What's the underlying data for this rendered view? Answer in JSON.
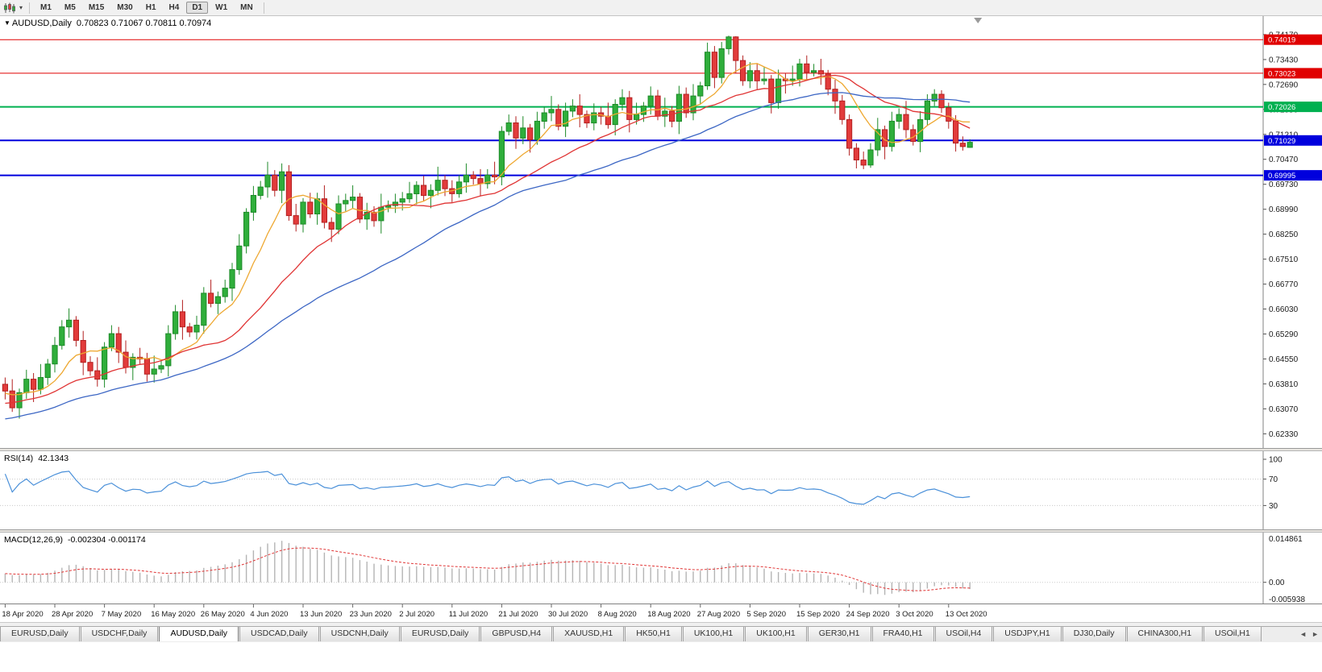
{
  "colors": {
    "up": "#2fae3b",
    "up_stroke": "#1d8a28",
    "down": "#e23b3b",
    "down_stroke": "#b32020",
    "ma_fast": "#eea831",
    "ma_mid": "#e03434",
    "ma_slow": "#3c66c4",
    "rsi_line": "#4a90d9",
    "macd_hist": "#b4b4b4",
    "macd_signal": "#e03434",
    "hline_red": "#e00000",
    "hline_green": "#00b050",
    "hline_blue": "#0000dd"
  },
  "toolbar": {
    "timeframes": [
      {
        "label": "M1",
        "active": false
      },
      {
        "label": "M5",
        "active": false
      },
      {
        "label": "M15",
        "active": false
      },
      {
        "label": "M30",
        "active": false
      },
      {
        "label": "H1",
        "active": false
      },
      {
        "label": "H4",
        "active": false
      },
      {
        "label": "D1",
        "active": true
      },
      {
        "label": "W1",
        "active": false
      },
      {
        "label": "MN",
        "active": false
      }
    ]
  },
  "chart": {
    "header": {
      "symbol": "AUDUSD,Daily",
      "ohlc": "0.70823 0.71067 0.70811 0.70974"
    },
    "price_axis": {
      "min": 0.621,
      "max": 0.7455
    },
    "price_axis_labels": [
      "0.74170",
      "0.73430",
      "0.72690",
      "0.71950",
      "0.71210",
      "0.70470",
      "0.69730",
      "0.68990",
      "0.68250",
      "0.67510",
      "0.66770",
      "0.66030",
      "0.65290",
      "0.64550",
      "0.63810",
      "0.63070",
      "0.62330"
    ],
    "hlines": [
      {
        "price": 0.74019,
        "label": "0.74019",
        "color_key": "hline_red",
        "width": 1
      },
      {
        "price": 0.73023,
        "label": "0.73023",
        "color_key": "hline_red",
        "width": 1
      },
      {
        "price": 0.72026,
        "label": "0.72026",
        "color_key": "hline_green",
        "width": 2
      },
      {
        "price": 0.71029,
        "label": "0.71029",
        "color_key": "hline_blue",
        "width": 2
      },
      {
        "price": 0.69995,
        "label": "0.69995",
        "color_key": "hline_blue",
        "width": 2
      }
    ]
  },
  "chart_data": {
    "type": "candlestick",
    "symbol": "AUDUSD",
    "period": "Daily",
    "x_labels": [
      "18 Apr 2020",
      "28 Apr 2020",
      "7 May 2020",
      "16 May 2020",
      "26 May 2020",
      "4 Jun 2020",
      "13 Jun 2020",
      "23 Jun 2020",
      "2 Jul 2020",
      "11 Jul 2020",
      "21 Jul 2020",
      "30 Jul 2020",
      "8 Aug 2020",
      "18 Aug 2020",
      "27 Aug 2020",
      "5 Sep 2020",
      "15 Sep 2020",
      "24 Sep 2020",
      "3 Oct 2020",
      "13 Oct 2020"
    ],
    "label_every_bars": 7,
    "pre_closes": [
      0.618,
      0.6185,
      0.6178,
      0.6192,
      0.62,
      0.6195,
      0.6208,
      0.6215,
      0.621,
      0.6222,
      0.623,
      0.6225,
      0.6238,
      0.6245,
      0.624,
      0.6252,
      0.626,
      0.6255,
      0.6268,
      0.6275,
      0.627,
      0.6282,
      0.629,
      0.6285,
      0.6298,
      0.6305,
      0.63,
      0.6312,
      0.632,
      0.6315,
      0.6328,
      0.6335,
      0.633,
      0.6342,
      0.635,
      0.6345,
      0.6352,
      0.6358,
      0.6355,
      0.6362
    ],
    "candles": [
      [
        0.638,
        0.64,
        0.6335,
        0.636
      ],
      [
        0.636,
        0.6395,
        0.6298,
        0.631
      ],
      [
        0.631,
        0.6367,
        0.6278,
        0.6355
      ],
      [
        0.6355,
        0.6423,
        0.6337,
        0.6395
      ],
      [
        0.6395,
        0.6413,
        0.6327,
        0.6365
      ],
      [
        0.6365,
        0.644,
        0.635,
        0.64
      ],
      [
        0.64,
        0.6455,
        0.6378,
        0.644
      ],
      [
        0.644,
        0.652,
        0.6415,
        0.6495
      ],
      [
        0.6495,
        0.657,
        0.6483,
        0.655
      ],
      [
        0.655,
        0.6605,
        0.6518,
        0.657
      ],
      [
        0.657,
        0.6582,
        0.6492,
        0.651
      ],
      [
        0.651,
        0.6538,
        0.6407,
        0.6445
      ],
      [
        0.6445,
        0.6463,
        0.6405,
        0.642
      ],
      [
        0.642,
        0.646,
        0.6373,
        0.6395
      ],
      [
        0.6395,
        0.6505,
        0.637,
        0.649
      ],
      [
        0.649,
        0.6555,
        0.6478,
        0.653
      ],
      [
        0.653,
        0.655,
        0.6443,
        0.6475
      ],
      [
        0.6475,
        0.651,
        0.6412,
        0.643
      ],
      [
        0.643,
        0.6472,
        0.6392,
        0.646
      ],
      [
        0.646,
        0.6488,
        0.644,
        0.6455
      ],
      [
        0.6455,
        0.6473,
        0.6388,
        0.641
      ],
      [
        0.641,
        0.6465,
        0.6385,
        0.6425
      ],
      [
        0.6425,
        0.645,
        0.6413,
        0.6435
      ],
      [
        0.6435,
        0.6555,
        0.6403,
        0.653
      ],
      [
        0.653,
        0.6615,
        0.6512,
        0.6595
      ],
      [
        0.6595,
        0.663,
        0.6512,
        0.655
      ],
      [
        0.655,
        0.6562,
        0.652,
        0.6535
      ],
      [
        0.6535,
        0.6583,
        0.6513,
        0.6555
      ],
      [
        0.6555,
        0.6668,
        0.653,
        0.665
      ],
      [
        0.665,
        0.669,
        0.6608,
        0.662
      ],
      [
        0.662,
        0.6655,
        0.6588,
        0.664
      ],
      [
        0.664,
        0.669,
        0.6622,
        0.6665
      ],
      [
        0.6665,
        0.674,
        0.6627,
        0.672
      ],
      [
        0.672,
        0.6825,
        0.6705,
        0.679
      ],
      [
        0.679,
        0.6902,
        0.6768,
        0.689
      ],
      [
        0.689,
        0.6968,
        0.6865,
        0.694
      ],
      [
        0.694,
        0.6983,
        0.6928,
        0.6965
      ],
      [
        0.6965,
        0.704,
        0.6933,
        0.7
      ],
      [
        0.7,
        0.7015,
        0.6937,
        0.6955
      ],
      [
        0.6955,
        0.7035,
        0.6917,
        0.701
      ],
      [
        0.701,
        0.703,
        0.6865,
        0.688
      ],
      [
        0.688,
        0.6915,
        0.6833,
        0.6855
      ],
      [
        0.6855,
        0.6932,
        0.683,
        0.692
      ],
      [
        0.692,
        0.6948,
        0.6873,
        0.6885
      ],
      [
        0.6885,
        0.6948,
        0.6853,
        0.693
      ],
      [
        0.693,
        0.697,
        0.6842,
        0.686
      ],
      [
        0.686,
        0.6875,
        0.6802,
        0.684
      ],
      [
        0.684,
        0.694,
        0.6825,
        0.6915
      ],
      [
        0.6915,
        0.6945,
        0.6893,
        0.6925
      ],
      [
        0.6925,
        0.697,
        0.69,
        0.6935
      ],
      [
        0.6935,
        0.6947,
        0.6858,
        0.687
      ],
      [
        0.687,
        0.6918,
        0.6838,
        0.689
      ],
      [
        0.689,
        0.6908,
        0.6847,
        0.6865
      ],
      [
        0.6865,
        0.6945,
        0.6827,
        0.6905
      ],
      [
        0.6905,
        0.6925,
        0.689,
        0.691
      ],
      [
        0.691,
        0.6945,
        0.6888,
        0.692
      ],
      [
        0.692,
        0.695,
        0.6895,
        0.693
      ],
      [
        0.693,
        0.698,
        0.6918,
        0.6945
      ],
      [
        0.6945,
        0.6982,
        0.6913,
        0.697
      ],
      [
        0.697,
        0.6998,
        0.6922,
        0.694
      ],
      [
        0.694,
        0.6973,
        0.6902,
        0.6955
      ],
      [
        0.6955,
        0.7025,
        0.694,
        0.6985
      ],
      [
        0.6985,
        0.7,
        0.6938,
        0.696
      ],
      [
        0.696,
        0.6985,
        0.692,
        0.6945
      ],
      [
        0.6945,
        0.7,
        0.6933,
        0.698
      ],
      [
        0.698,
        0.7035,
        0.6948,
        0.7
      ],
      [
        0.7,
        0.7012,
        0.6972,
        0.699
      ],
      [
        0.699,
        0.7018,
        0.6937,
        0.6975
      ],
      [
        0.6975,
        0.7018,
        0.696,
        0.7
      ],
      [
        0.7,
        0.704,
        0.6973,
        0.6995
      ],
      [
        0.6995,
        0.7145,
        0.697,
        0.713
      ],
      [
        0.713,
        0.718,
        0.7118,
        0.7155
      ],
      [
        0.7155,
        0.7175,
        0.7078,
        0.711
      ],
      [
        0.711,
        0.7175,
        0.7092,
        0.714
      ],
      [
        0.714,
        0.7152,
        0.7067,
        0.7105
      ],
      [
        0.7105,
        0.7188,
        0.709,
        0.716
      ],
      [
        0.716,
        0.7203,
        0.7138,
        0.7185
      ],
      [
        0.7185,
        0.7235,
        0.716,
        0.7195
      ],
      [
        0.7195,
        0.721,
        0.7133,
        0.7145
      ],
      [
        0.7145,
        0.7215,
        0.7113,
        0.719
      ],
      [
        0.719,
        0.7225,
        0.7172,
        0.7205
      ],
      [
        0.7205,
        0.724,
        0.7142,
        0.718
      ],
      [
        0.718,
        0.7192,
        0.714,
        0.7155
      ],
      [
        0.7155,
        0.7213,
        0.7133,
        0.7185
      ],
      [
        0.7185,
        0.7203,
        0.715,
        0.7175
      ],
      [
        0.7175,
        0.7215,
        0.7138,
        0.715
      ],
      [
        0.715,
        0.7225,
        0.7118,
        0.721
      ],
      [
        0.721,
        0.7255,
        0.7192,
        0.723
      ],
      [
        0.723,
        0.725,
        0.7127,
        0.7165
      ],
      [
        0.7165,
        0.7215,
        0.715,
        0.718
      ],
      [
        0.718,
        0.7217,
        0.7158,
        0.7205
      ],
      [
        0.7205,
        0.7263,
        0.718,
        0.7235
      ],
      [
        0.7235,
        0.7253,
        0.7163,
        0.7175
      ],
      [
        0.7175,
        0.723,
        0.7143,
        0.719
      ],
      [
        0.719,
        0.7205,
        0.7142,
        0.716
      ],
      [
        0.716,
        0.7265,
        0.7122,
        0.724
      ],
      [
        0.724,
        0.726,
        0.717,
        0.7185
      ],
      [
        0.7185,
        0.727,
        0.7163,
        0.7235
      ],
      [
        0.7235,
        0.7277,
        0.721,
        0.7265
      ],
      [
        0.7265,
        0.7393,
        0.7253,
        0.7365
      ],
      [
        0.7365,
        0.7383,
        0.7258,
        0.729
      ],
      [
        0.729,
        0.7395,
        0.7272,
        0.7375
      ],
      [
        0.7375,
        0.7414,
        0.7358,
        0.741
      ],
      [
        0.741,
        0.7412,
        0.7302,
        0.734
      ],
      [
        0.734,
        0.7355,
        0.7265,
        0.728
      ],
      [
        0.728,
        0.7335,
        0.7258,
        0.731
      ],
      [
        0.731,
        0.733,
        0.7255,
        0.728
      ],
      [
        0.728,
        0.732,
        0.7268,
        0.7285
      ],
      [
        0.7285,
        0.7297,
        0.7183,
        0.7215
      ],
      [
        0.7215,
        0.7313,
        0.7197,
        0.7285
      ],
      [
        0.7285,
        0.7303,
        0.7242,
        0.728
      ],
      [
        0.728,
        0.7325,
        0.7265,
        0.7285
      ],
      [
        0.7285,
        0.7345,
        0.7263,
        0.733
      ],
      [
        0.733,
        0.7355,
        0.728,
        0.7305
      ],
      [
        0.7305,
        0.733,
        0.7293,
        0.731
      ],
      [
        0.731,
        0.7345,
        0.7268,
        0.73
      ],
      [
        0.73,
        0.7312,
        0.7237,
        0.7255
      ],
      [
        0.7255,
        0.7283,
        0.7182,
        0.722
      ],
      [
        0.722,
        0.7238,
        0.715,
        0.7165
      ],
      [
        0.7165,
        0.718,
        0.7058,
        0.708
      ],
      [
        0.708,
        0.7095,
        0.702,
        0.7045
      ],
      [
        0.7045,
        0.707,
        0.7018,
        0.703
      ],
      [
        0.703,
        0.7095,
        0.7022,
        0.7075
      ],
      [
        0.7075,
        0.717,
        0.7057,
        0.7135
      ],
      [
        0.7135,
        0.7147,
        0.7047,
        0.7085
      ],
      [
        0.7085,
        0.7188,
        0.707,
        0.716
      ],
      [
        0.716,
        0.7198,
        0.7138,
        0.718
      ],
      [
        0.718,
        0.722,
        0.711,
        0.7135
      ],
      [
        0.7135,
        0.715,
        0.7088,
        0.71
      ],
      [
        0.71,
        0.719,
        0.7068,
        0.7165
      ],
      [
        0.7165,
        0.724,
        0.7147,
        0.722
      ],
      [
        0.722,
        0.7255,
        0.7205,
        0.724
      ],
      [
        0.724,
        0.7252,
        0.7185,
        0.72
      ],
      [
        0.72,
        0.7215,
        0.7138,
        0.716
      ],
      [
        0.716,
        0.7178,
        0.707,
        0.7095
      ],
      [
        0.7095,
        0.7115,
        0.7073,
        0.7085
      ],
      [
        0.70823,
        0.71067,
        0.70811,
        0.70974
      ]
    ],
    "moving_averages": [
      {
        "name": "fast",
        "window": 8,
        "color_key": "ma_fast"
      },
      {
        "name": "mid",
        "window": 21,
        "color_key": "ma_mid"
      },
      {
        "name": "slow",
        "window": 40,
        "color_key": "ma_slow"
      }
    ]
  },
  "rsi": {
    "name": "RSI(14)",
    "value": "42.1343",
    "period": 14,
    "level_lines": [
      70,
      30
    ],
    "axis_labels": [
      "100",
      "70",
      "30"
    ]
  },
  "macd": {
    "name": "MACD(12,26,9)",
    "values": "-0.002304 -0.001174",
    "fast": 12,
    "slow": 26,
    "signal": 9,
    "axis_top": "0.014861",
    "axis_zero": "0.00",
    "axis_bottom": "-0.005938"
  },
  "tabs": [
    {
      "label": "EURUSD,Daily",
      "active": false
    },
    {
      "label": "USDCHF,Daily",
      "active": false
    },
    {
      "label": "AUDUSD,Daily",
      "active": true
    },
    {
      "label": "USDCAD,Daily",
      "active": false
    },
    {
      "label": "USDCNH,Daily",
      "active": false
    },
    {
      "label": "EURUSD,Daily",
      "active": false
    },
    {
      "label": "GBPUSD,H4",
      "active": false
    },
    {
      "label": "XAUUSD,H1",
      "active": false
    },
    {
      "label": "HK50,H1",
      "active": false
    },
    {
      "label": "UK100,H1",
      "active": false
    },
    {
      "label": "UK100,H1",
      "active": false
    },
    {
      "label": "GER30,H1",
      "active": false
    },
    {
      "label": "FRA40,H1",
      "active": false
    },
    {
      "label": "USOil,H4",
      "active": false
    },
    {
      "label": "USDJPY,H1",
      "active": false
    },
    {
      "label": "DJ30,Daily",
      "active": false
    },
    {
      "label": "CHINA300,H1",
      "active": false
    },
    {
      "label": "USOil,H1",
      "active": false
    }
  ],
  "tab_scroll": {
    "left": "◄",
    "right": "►"
  }
}
